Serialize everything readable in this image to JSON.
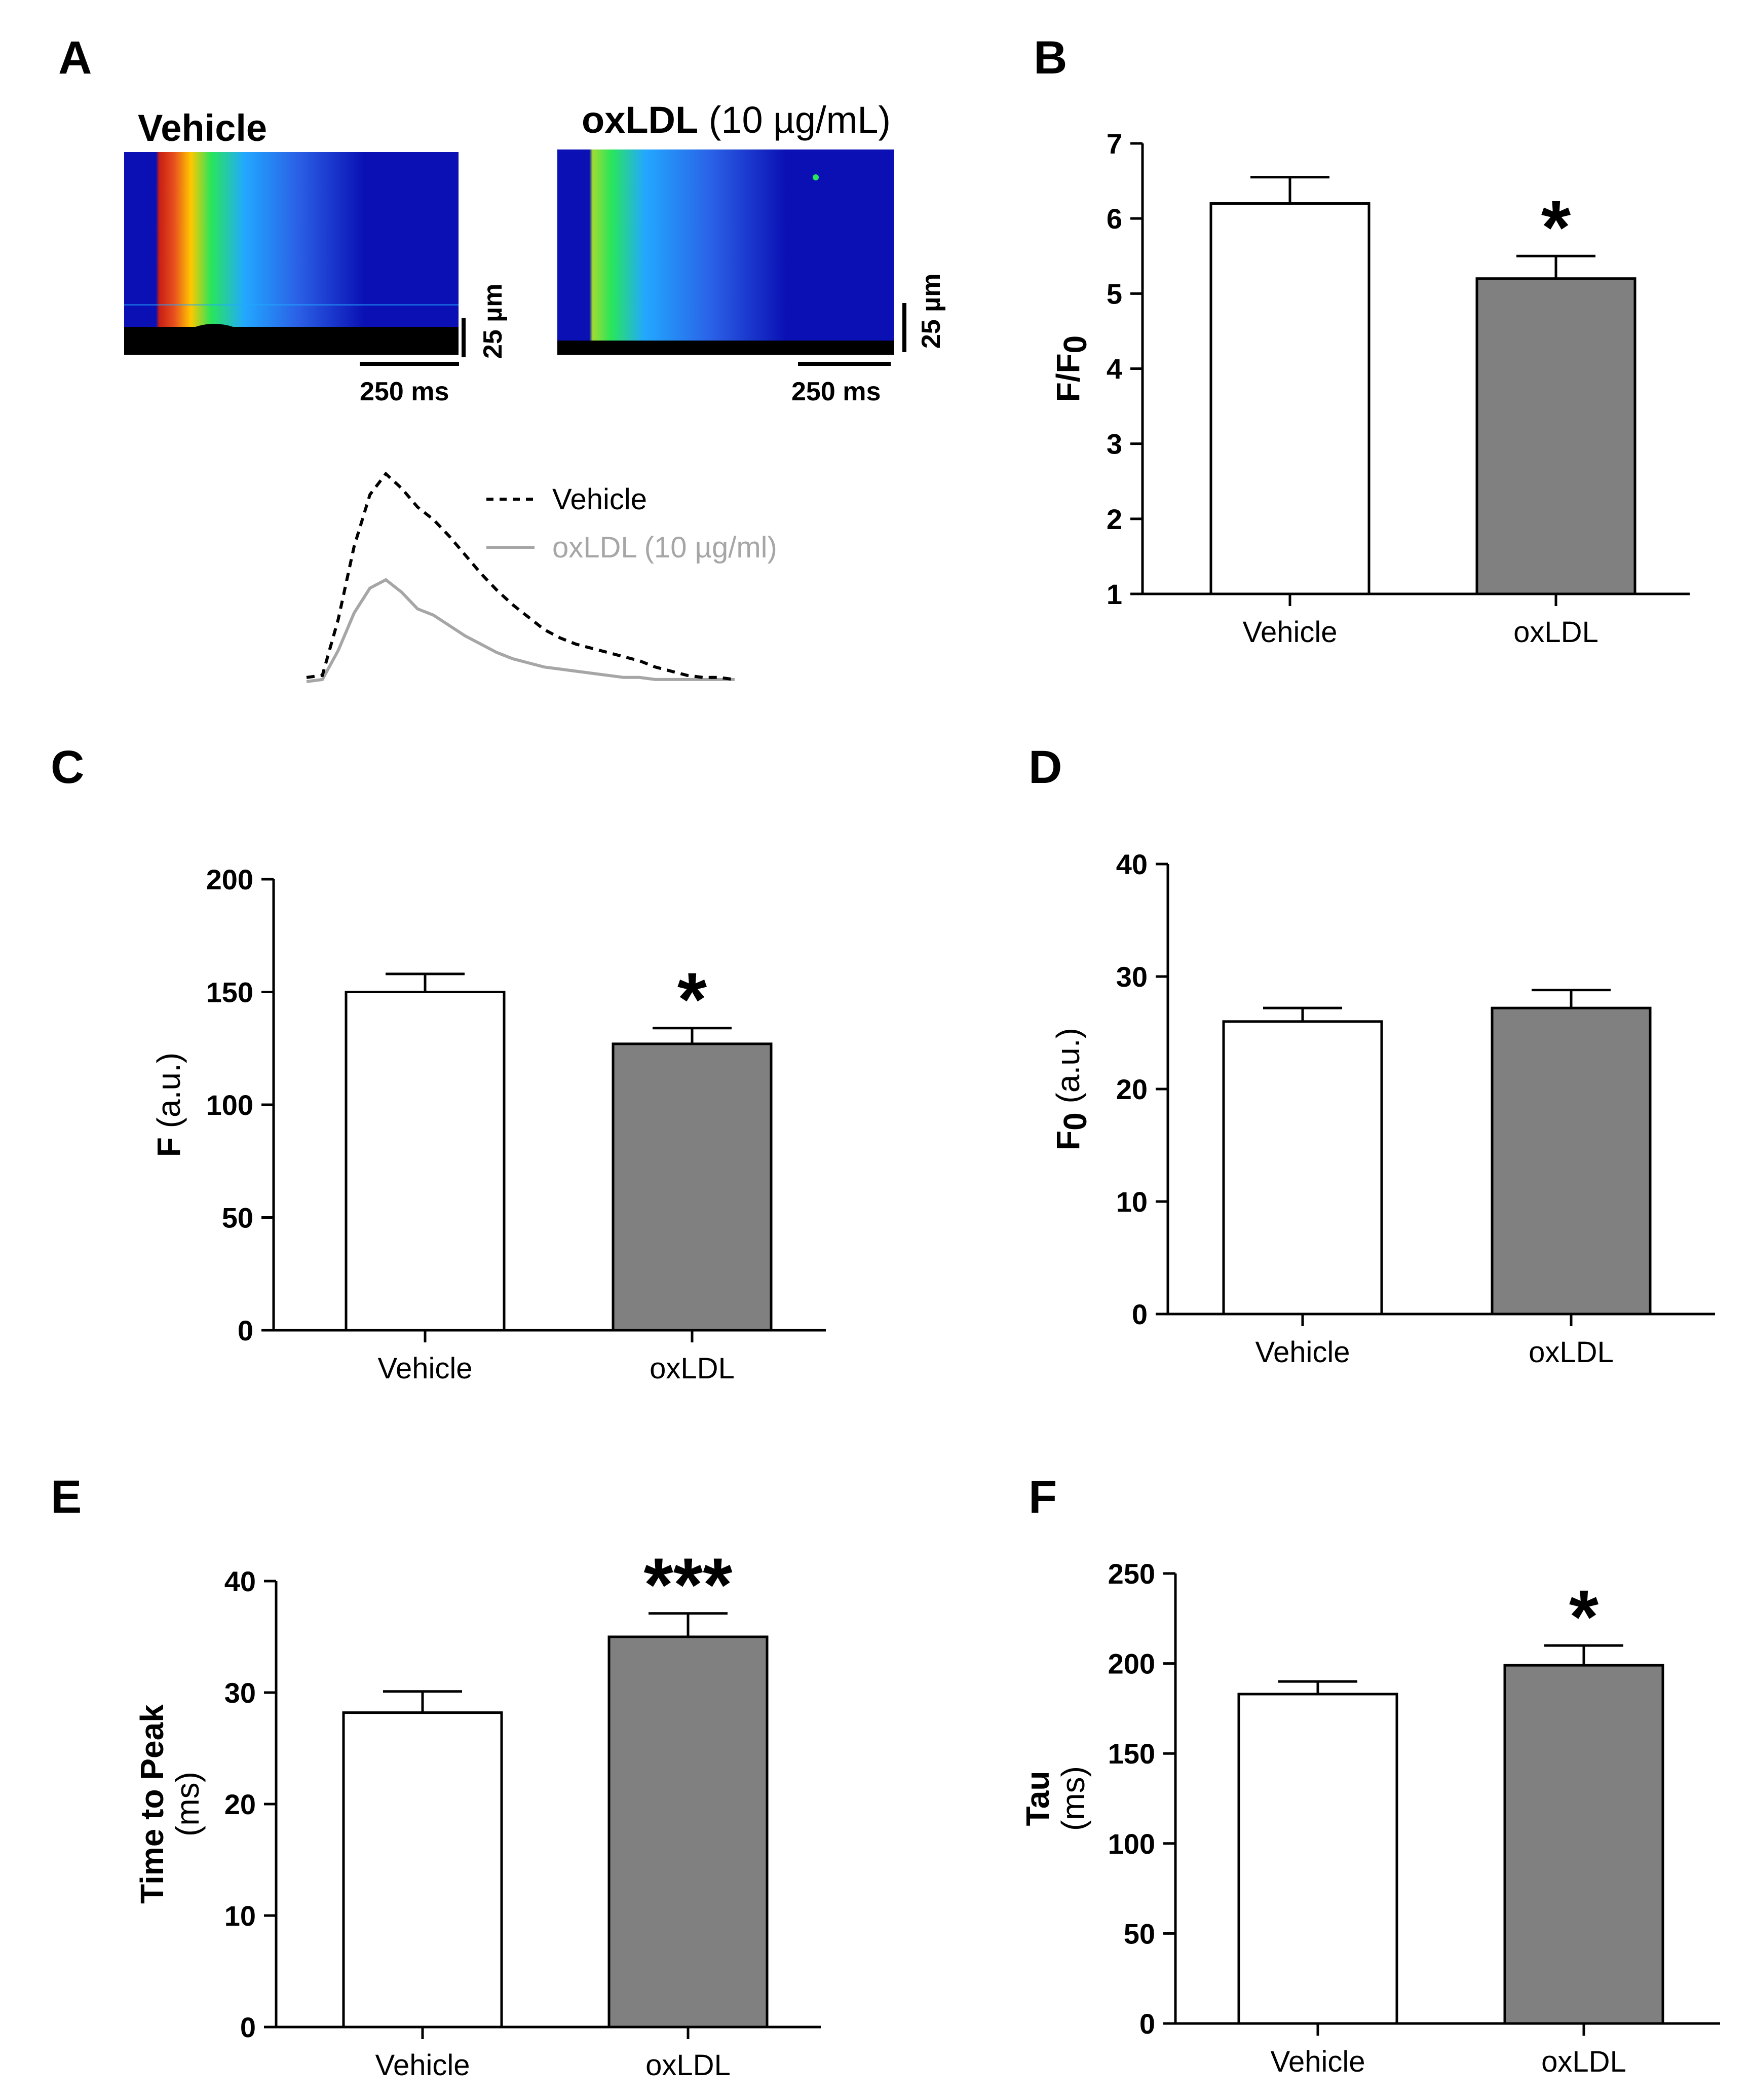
{
  "colors": {
    "axis": "#000000",
    "vehicle_fill": "#ffffff",
    "oxldl_fill": "#808080",
    "legend_oxldl": "#a6a6a6",
    "heat_bg": "#0a10b4",
    "heat_mid": "#22a8ff",
    "heat_hot": "#c81e14",
    "heat_warm": "#ffc800",
    "heat_green": "#28e65a"
  },
  "panel_a": {
    "label": "A",
    "vehicle_title": "Vehicle",
    "oxldl_title_bold": "oxLDL",
    "oxldl_title_rest": " (10 µg/mL)",
    "time_scale_label": "250 ms",
    "space_scale_label": "25 µm",
    "legend": [
      {
        "label": "Vehicle",
        "style": "dashed",
        "color": "#000000"
      },
      {
        "label": "oxLDL (10 µg/ml)",
        "style": "solid",
        "color": "#a6a6a6"
      }
    ],
    "traces": {
      "vehicle": [
        0.02,
        0.03,
        0.3,
        0.65,
        0.9,
        1.0,
        0.93,
        0.84,
        0.78,
        0.7,
        0.61,
        0.52,
        0.44,
        0.37,
        0.31,
        0.25,
        0.21,
        0.18,
        0.16,
        0.14,
        0.12,
        0.1,
        0.07,
        0.05,
        0.03,
        0.02,
        0.02,
        0.01
      ],
      "oxldl": [
        0.0,
        0.01,
        0.15,
        0.33,
        0.45,
        0.49,
        0.43,
        0.35,
        0.32,
        0.27,
        0.22,
        0.18,
        0.14,
        0.11,
        0.09,
        0.07,
        0.06,
        0.05,
        0.04,
        0.03,
        0.02,
        0.02,
        0.01,
        0.01,
        0.01,
        0.01,
        0.01,
        0.01
      ]
    }
  },
  "chart_data": [
    {
      "panel": "B",
      "type": "bar",
      "categories": [
        "Vehicle",
        "oxLDL"
      ],
      "values": [
        6.2,
        5.2
      ],
      "errors": [
        0.35,
        0.3
      ],
      "significance": [
        "",
        "*"
      ],
      "ylabel_main": "F/F",
      "ylabel_sub": "0",
      "ylabel_rest": "",
      "ylabel_line2": "",
      "ylim": [
        1,
        7
      ],
      "yticks": [
        1,
        2,
        3,
        4,
        5,
        6,
        7
      ],
      "yticklabels": [
        "1",
        "2",
        "3",
        "4",
        "5",
        "6",
        "7"
      ]
    },
    {
      "panel": "C",
      "type": "bar",
      "categories": [
        "Vehicle",
        "oxLDL"
      ],
      "values": [
        150,
        127
      ],
      "errors": [
        8,
        7
      ],
      "significance": [
        "",
        "*"
      ],
      "ylabel_main": "F",
      "ylabel_sub": "",
      "ylabel_rest": " (a.u.)",
      "ylabel_line2": "",
      "ylim": [
        0,
        200
      ],
      "yticks": [
        0,
        50,
        100,
        150,
        200
      ],
      "yticklabels": [
        "0",
        "50",
        "100",
        "150",
        "200"
      ]
    },
    {
      "panel": "D",
      "type": "bar",
      "categories": [
        "Vehicle",
        "oxLDL"
      ],
      "values": [
        26,
        27.2
      ],
      "errors": [
        1.2,
        1.6
      ],
      "significance": [
        "",
        ""
      ],
      "ylabel_main": "F",
      "ylabel_sub": "0",
      "ylabel_rest": " (a.u.)",
      "ylabel_line2": "",
      "ylim": [
        0,
        40
      ],
      "yticks": [
        0,
        10,
        20,
        30,
        40
      ],
      "yticklabels": [
        "0",
        "10",
        "20",
        "30",
        "40"
      ]
    },
    {
      "panel": "E",
      "type": "bar",
      "categories": [
        "Vehicle",
        "oxLDL"
      ],
      "values": [
        28.2,
        35
      ],
      "errors": [
        1.9,
        2.1
      ],
      "significance": [
        "",
        "***"
      ],
      "ylabel_main": "Time to Peak",
      "ylabel_sub": "",
      "ylabel_rest": "",
      "ylabel_line2": "(ms)",
      "ylim": [
        0,
        40
      ],
      "yticks": [
        0,
        10,
        20,
        30,
        40
      ],
      "yticklabels": [
        "0",
        "10",
        "20",
        "30",
        "40"
      ]
    },
    {
      "panel": "F",
      "type": "bar",
      "categories": [
        "Vehicle",
        "oxLDL"
      ],
      "values": [
        183,
        199
      ],
      "errors": [
        7,
        11
      ],
      "significance": [
        "",
        "*"
      ],
      "ylabel_main": "Tau",
      "ylabel_sub": "",
      "ylabel_rest": "",
      "ylabel_line2": "(ms)",
      "ylim": [
        0,
        250
      ],
      "yticks": [
        0,
        50,
        100,
        150,
        200,
        250
      ],
      "yticklabels": [
        "0",
        "50",
        "100",
        "150",
        "200",
        "250"
      ]
    }
  ]
}
